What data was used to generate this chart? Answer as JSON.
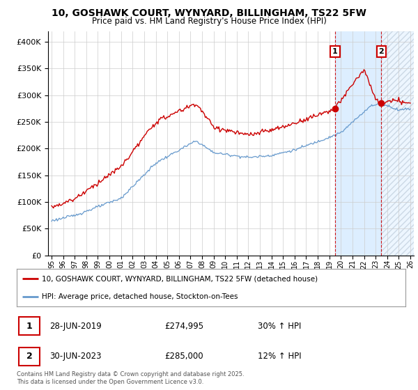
{
  "title": "10, GOSHAWK COURT, WYNYARD, BILLINGHAM, TS22 5FW",
  "subtitle": "Price paid vs. HM Land Registry's House Price Index (HPI)",
  "legend_line1": "10, GOSHAWK COURT, WYNYARD, BILLINGHAM, TS22 5FW (detached house)",
  "legend_line2": "HPI: Average price, detached house, Stockton-on-Tees",
  "annotation1_label": "1",
  "annotation1_date": "28-JUN-2019",
  "annotation1_price": "£274,995",
  "annotation1_hpi": "30% ↑ HPI",
  "annotation2_label": "2",
  "annotation2_date": "30-JUN-2023",
  "annotation2_price": "£285,000",
  "annotation2_hpi": "12% ↑ HPI",
  "footer": "Contains HM Land Registry data © Crown copyright and database right 2025.\nThis data is licensed under the Open Government Licence v3.0.",
  "red_color": "#cc0000",
  "blue_color": "#6699cc",
  "shade_color": "#ddeeff",
  "hatch_color": "#ccddee",
  "background_color": "#ffffff",
  "grid_color": "#cccccc",
  "ylim": [
    0,
    420000
  ],
  "yticks": [
    0,
    50000,
    100000,
    150000,
    200000,
    250000,
    300000,
    350000,
    400000
  ],
  "year_start": 1995,
  "year_end": 2026,
  "sale1_year": 2019.5,
  "sale1_price": 274995,
  "sale2_year": 2023.5,
  "sale2_price": 285000
}
